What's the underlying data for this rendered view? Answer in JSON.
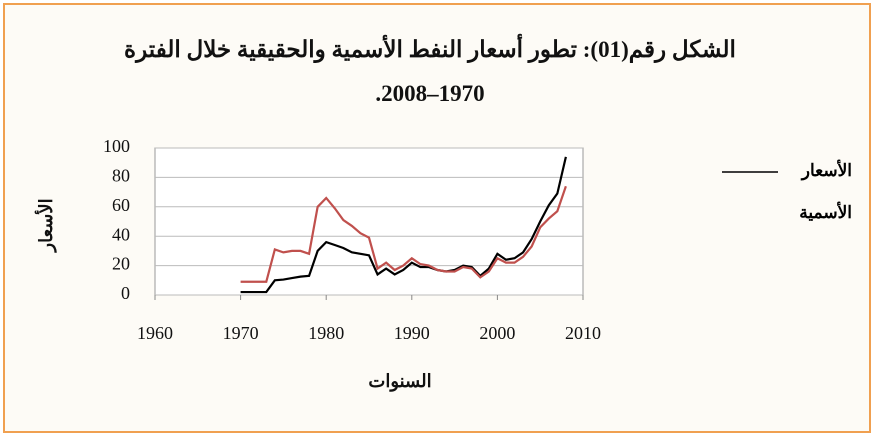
{
  "chart_data": {
    "type": "line",
    "title": "الشكل رقم(01): تطور أسعار النفط الأسمية والحقيقية خلال الفترة 1970–2008.",
    "x_label": "السنوات",
    "y_label": "الأسعار",
    "x": [
      1970,
      1971,
      1972,
      1973,
      1974,
      1975,
      1976,
      1977,
      1978,
      1979,
      1980,
      1981,
      1982,
      1983,
      1984,
      1985,
      1986,
      1987,
      1988,
      1989,
      1990,
      1991,
      1992,
      1993,
      1994,
      1995,
      1996,
      1997,
      1998,
      1999,
      2000,
      2001,
      2002,
      2003,
      2004,
      2005,
      2006,
      2007,
      2008
    ],
    "series": [
      {
        "name": "الأسعار الأسمية",
        "color": "#000000",
        "values": [
          2,
          2,
          2,
          2,
          10,
          10.5,
          11.5,
          12.5,
          13,
          30,
          36,
          34,
          32,
          29,
          28,
          27,
          14,
          18,
          14,
          17,
          22,
          19,
          19,
          17,
          16,
          17,
          20,
          19,
          13,
          18,
          28,
          24,
          25,
          29,
          38,
          50,
          61,
          69,
          94
        ]
      },
      {
        "color": "#c0504d",
        "values": [
          9,
          9,
          9,
          9,
          31,
          29,
          30,
          30,
          28,
          60,
          66,
          59,
          51,
          47,
          42,
          39,
          18,
          22,
          17,
          20,
          25,
          21,
          20,
          17,
          16,
          16,
          19,
          18,
          12,
          16,
          25,
          22,
          22,
          26,
          33,
          46,
          52,
          57,
          74
        ]
      }
    ],
    "xlim": [
      1960,
      2010
    ],
    "xticks": [
      1960,
      1970,
      1980,
      1990,
      2000,
      2010
    ],
    "ylim": [
      0,
      100
    ],
    "yticks": [
      0,
      20,
      40,
      60,
      80,
      100
    ]
  }
}
